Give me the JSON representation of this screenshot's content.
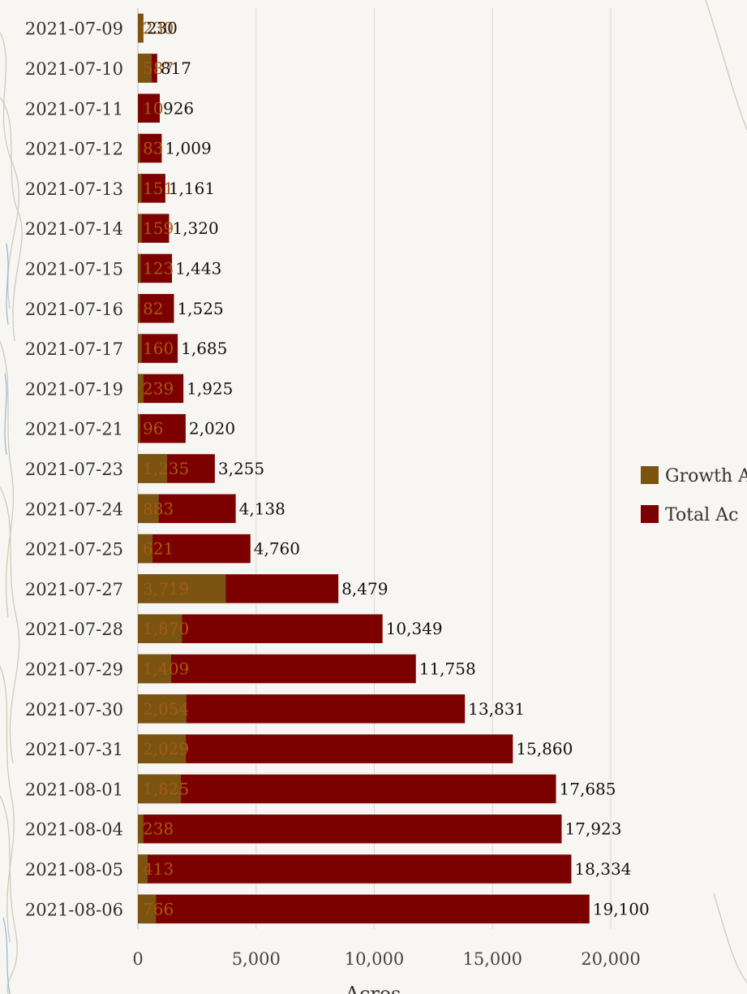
{
  "chart_data": {
    "type": "bar",
    "orientation": "horizontal",
    "categories": [
      "2021-07-09",
      "2021-07-10",
      "2021-07-11",
      "2021-07-12",
      "2021-07-13",
      "2021-07-14",
      "2021-07-15",
      "2021-07-16",
      "2021-07-17",
      "2021-07-19",
      "2021-07-21",
      "2021-07-23",
      "2021-07-24",
      "2021-07-25",
      "2021-07-27",
      "2021-07-28",
      "2021-07-29",
      "2021-07-30",
      "2021-07-31",
      "2021-08-01",
      "2021-08-04",
      "2021-08-05",
      "2021-08-06"
    ],
    "series": [
      {
        "name": "Growth A",
        "color": "#7a5410",
        "values": [
          230,
          587,
          10,
          83,
          151,
          159,
          123,
          82,
          160,
          239,
          96,
          1235,
          883,
          621,
          3719,
          1870,
          1409,
          2054,
          2029,
          1825,
          238,
          413,
          766
        ]
      },
      {
        "name": "Total Ac",
        "color": "#7d0000",
        "values": [
          230,
          817,
          926,
          1009,
          1161,
          1320,
          1443,
          1525,
          1685,
          1925,
          2020,
          3255,
          4138,
          4760,
          8479,
          10349,
          11758,
          13831,
          15860,
          17685,
          17923,
          18334,
          19100
        ]
      }
    ],
    "total_labels": [
      "230",
      "817",
      "926",
      "1,009",
      "1,161",
      "1,320",
      "1,443",
      "1,525",
      "1,685",
      "1,925",
      "2,020",
      "3,255",
      "4,138",
      "4,760",
      "8,479",
      "10,349",
      "11,758",
      "13,831",
      "15,860",
      "17,685",
      "17,923",
      "18,334",
      "19,100"
    ],
    "growth_labels": [
      "230",
      "587",
      "10",
      "83",
      "151",
      "159",
      "123",
      "82",
      "160",
      "239",
      "96",
      "1,235",
      "883",
      "621",
      "3,719",
      "1,870",
      "1,409",
      "2,054",
      "2,029",
      "1,825",
      "238",
      "413",
      "766"
    ],
    "xlabel": "Acres",
    "xlim": [
      0,
      20000
    ],
    "xticks": [
      0,
      5000,
      10000,
      15000,
      20000
    ],
    "xtick_labels": [
      "0",
      "5,000",
      "10,000",
      "15,000",
      "20,000"
    ],
    "grid": true,
    "legend_position": "right"
  }
}
